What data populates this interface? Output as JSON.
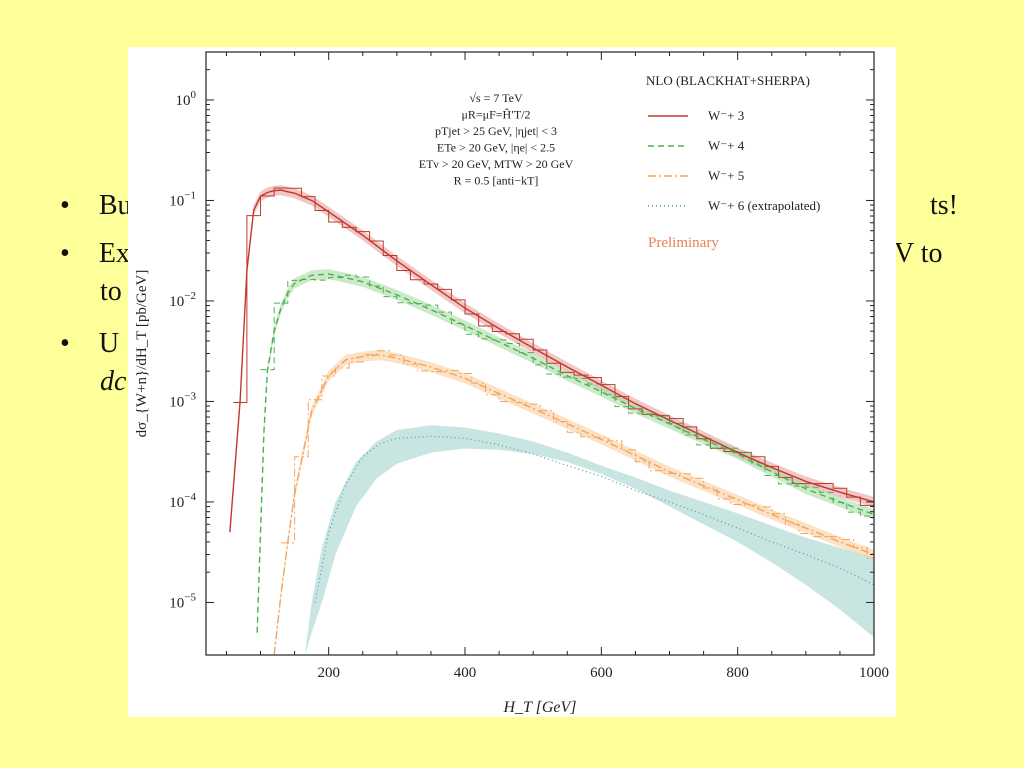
{
  "slide": {
    "bullets": [
      {
        "bullet": "•",
        "left": "Bu",
        "right": "ts!"
      },
      {
        "bullet": "•",
        "left": "Ex",
        "right": "V to"
      },
      {
        "bullet": "",
        "left": "to",
        "right": ""
      },
      {
        "bullet": "•",
        "left": "U",
        "right": ""
      },
      {
        "bullet": "",
        "left": "dc",
        "right": ""
      }
    ]
  },
  "chart_data": {
    "type": "line",
    "xlabel": "H_T [GeV]",
    "ylabel": "dσ_{W+n}/dH_T [pb/GeV]",
    "xlim": [
      20,
      1000
    ],
    "ylim": [
      3e-06,
      3.0
    ],
    "yscale": "log",
    "x_ticks": [
      200,
      400,
      600,
      800,
      1000
    ],
    "x_tick_labels": [
      "200",
      "400",
      "600",
      "800",
      "1000"
    ],
    "y_ticks": [
      1,
      0.1,
      0.01,
      0.001,
      0.0001,
      1e-05
    ],
    "y_tick_labels": [
      {
        "base": "10",
        "exp": "0"
      },
      {
        "base": "10",
        "exp": "−1"
      },
      {
        "base": "10",
        "exp": "−2"
      },
      {
        "base": "10",
        "exp": "−3"
      },
      {
        "base": "10",
        "exp": "−4"
      },
      {
        "base": "10",
        "exp": "−5"
      }
    ],
    "cuts": [
      "√s = 7 TeV",
      "μR=μF=Ĥ′T/2",
      "pTjet > 25 GeV, |ηjet| < 3",
      "ETe > 20 GeV, |ηe| < 2.5",
      "ETν > 20 GeV, MTW > 20 GeV",
      "R = 0.5 [anti−kT]"
    ],
    "legend_title": "NLO (BLACKHAT+SHERPA)",
    "legend_position": "top-right",
    "annotation": "Preliminary",
    "series": [
      {
        "name": "W⁻+ 3",
        "color": "#c0392b",
        "dash": "",
        "x": [
          55,
          70,
          80,
          90,
          100,
          110,
          120,
          130,
          140,
          150,
          175,
          200,
          250,
          300,
          350,
          400,
          450,
          500,
          550,
          600,
          650,
          700,
          750,
          800,
          850,
          900,
          950,
          1000
        ],
        "y": [
          5e-05,
          0.001,
          0.02,
          0.08,
          0.11,
          0.12,
          0.125,
          0.127,
          0.122,
          0.118,
          0.1,
          0.077,
          0.045,
          0.025,
          0.0145,
          0.0085,
          0.0053,
          0.0034,
          0.0022,
          0.00145,
          0.00095,
          0.00065,
          0.00045,
          0.00031,
          0.00022,
          0.00016,
          0.000125,
          0.0001
        ]
      },
      {
        "name": "W⁻+ 4",
        "color": "#4caf50",
        "dash": "6,4",
        "x": [
          95,
          100,
          105,
          110,
          120,
          130,
          140,
          150,
          175,
          200,
          225,
          250,
          300,
          350,
          400,
          450,
          500,
          550,
          600,
          650,
          700,
          750,
          800,
          850,
          900,
          950,
          1000
        ],
        "y": [
          5e-06,
          5e-05,
          0.0005,
          0.002,
          0.005,
          0.0085,
          0.012,
          0.015,
          0.018,
          0.0185,
          0.017,
          0.0155,
          0.0115,
          0.0082,
          0.0057,
          0.0039,
          0.0027,
          0.0018,
          0.00125,
          0.00085,
          0.0006,
          0.00042,
          0.0003,
          0.0002,
          0.000135,
          0.0001,
          7.5e-05
        ]
      },
      {
        "name": "W⁻+ 5",
        "color": "#f5a25d",
        "dash": "8,3,2,3",
        "x": [
          120,
          130,
          140,
          150,
          175,
          200,
          225,
          250,
          275,
          300,
          350,
          400,
          450,
          500,
          550,
          600,
          650,
          700,
          750,
          800,
          850,
          900,
          950,
          1000
        ],
        "y": [
          3e-06,
          1.2e-05,
          4e-05,
          0.00012,
          0.0008,
          0.0018,
          0.0026,
          0.0028,
          0.0029,
          0.0027,
          0.0022,
          0.0017,
          0.0012,
          0.00085,
          0.0006,
          0.00042,
          0.00029,
          0.0002,
          0.000145,
          0.000105,
          7.5e-05,
          5.5e-05,
          4e-05,
          3e-05
        ]
      },
      {
        "name": "W⁻+ 6 (extrapolated)",
        "color": "#4a9e9a",
        "dash": "1,3",
        "x": [
          180,
          200,
          225,
          250,
          275,
          300,
          350,
          400,
          450,
          500,
          550,
          600,
          650,
          700,
          750,
          800,
          850,
          900,
          950,
          1000
        ],
        "y": [
          1e-05,
          5e-05,
          0.00015,
          0.00028,
          0.00038,
          0.00043,
          0.00045,
          0.00043,
          0.00037,
          0.0003,
          0.00023,
          0.00018,
          0.00013,
          0.0001,
          7.5e-05,
          5.5e-05,
          4e-05,
          3e-05,
          2.2e-05,
          1.5e-05
        ],
        "band_x": [
          165,
          175,
          190,
          210,
          240,
          270,
          300,
          350,
          400,
          450,
          500,
          550,
          600,
          650,
          700,
          750,
          800,
          850,
          900,
          950,
          1000
        ],
        "band_lo": [
          3e-06,
          5e-06,
          1e-05,
          3e-05,
          9e-05,
          0.00017,
          0.00024,
          0.00031,
          0.00034,
          0.00033,
          0.0003,
          0.00025,
          0.00019,
          0.000135,
          9e-05,
          6e-05,
          4e-05,
          2.5e-05,
          1.5e-05,
          8.5e-06,
          4.5e-06
        ],
        "band_hi": [
          3e-06,
          1e-05,
          3.5e-05,
          0.0001,
          0.00025,
          0.0004,
          0.00052,
          0.00058,
          0.00055,
          0.00048,
          0.0004,
          0.00031,
          0.00023,
          0.000175,
          0.00013,
          0.0001,
          7.7e-05,
          5.8e-05,
          4.4e-05,
          3.5e-05,
          2.8e-05
        ]
      }
    ]
  }
}
